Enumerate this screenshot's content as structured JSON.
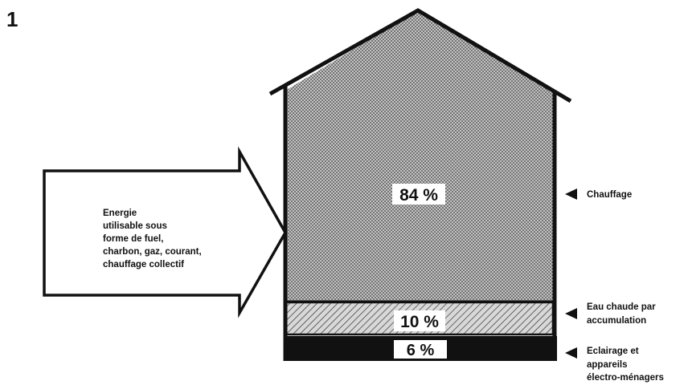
{
  "figure": {
    "number": "1"
  },
  "input": {
    "text_lines": [
      "Energie",
      "utilisable sous",
      "forme de fuel,",
      "charbon, gaz, courant,",
      "chauffage collectif"
    ]
  },
  "bands": [
    {
      "id": "heating",
      "percent": "84 %",
      "fill": "dotted",
      "label_lines": [
        "Chauffage"
      ]
    },
    {
      "id": "hot-water",
      "percent": "10 %",
      "fill": "hatched",
      "label_lines": [
        "Eau chaude par",
        "accumulation"
      ]
    },
    {
      "id": "lighting",
      "percent": "6 %",
      "fill": "solid",
      "label_lines": [
        "Eclairage et",
        "appareils",
        "électro-ménagers"
      ]
    }
  ],
  "colors": {
    "ink": "#111111",
    "paper": "#ffffff",
    "dot_fill": "#bdbdbd",
    "hatch_fill": "#d0d0d0"
  }
}
